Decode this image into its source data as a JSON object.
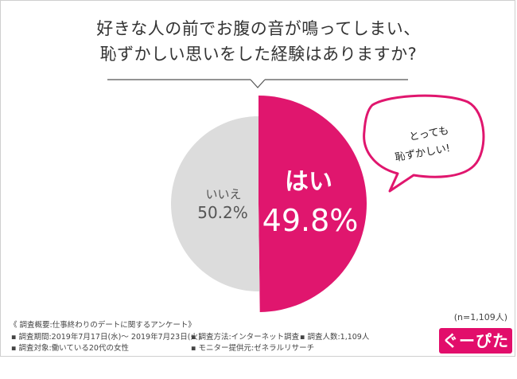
{
  "title": {
    "line1": "好きな人の前でお腹の音が鳴ってしまい、",
    "line2": "恥ずかしい思いをした経験はありますか?"
  },
  "chart_data": {
    "type": "pie",
    "slices": [
      {
        "label": "はい",
        "value": 49.8,
        "value_label": "49.8%",
        "color": "#e0166e"
      },
      {
        "label": "いいえ",
        "value": 50.2,
        "value_label": "50.2%",
        "color": "#dcdcdc"
      }
    ]
  },
  "bubble": {
    "line1": "とっても",
    "line2": "恥ずかしい!"
  },
  "sample_size": "(n=1,109人)",
  "survey": {
    "heading": "《 調査概要:仕事終わりのデートに関するアンケート》",
    "period": "▪ 調査期間:2019年7月17日(水)〜 2019年7月23日(火)",
    "target": "▪ 調査対象:働いている20代の女性",
    "method": "▪ 調査方法:インターネット調査",
    "count": "▪ 調査人数:1,109人",
    "provider": "▪ モニター提供元:ゼネラルリサーチ"
  },
  "logo": {
    "text": "ぐーぴたっ"
  },
  "colors": {
    "accent": "#e0166e",
    "gray": "#dcdcdc"
  }
}
